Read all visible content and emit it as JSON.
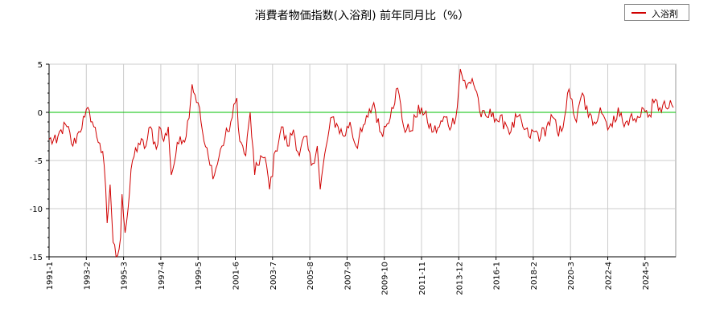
{
  "chart_data": {
    "type": "line",
    "title": "消費者物価指数(入浴剤) 前年同月比（%）",
    "xlabel": "",
    "ylabel": "",
    "ylim": [
      -15,
      5
    ],
    "yticks": [
      5,
      0,
      -5,
      -10,
      -15
    ],
    "xtick_labels": [
      "1991-1",
      "1993-2",
      "1995-3",
      "1997-4",
      "1999-5",
      "2001-6",
      "2003-7",
      "2005-8",
      "2007-9",
      "2009-10",
      "2011-11",
      "2013-12",
      "2016-1",
      "2018-2",
      "2020-3",
      "2022-4",
      "2024-5"
    ],
    "reference_line": {
      "y": 0,
      "color": "#00c000"
    },
    "grid": true,
    "legend_position": "top-right",
    "series": [
      {
        "name": "入浴剤",
        "color": "#d00000",
        "anchors": [
          [
            "1991-01",
            -2.8
          ],
          [
            "1991-06",
            -3.2
          ],
          [
            "1991-09",
            -1.8
          ],
          [
            "1992-01",
            -1.5
          ],
          [
            "1992-05",
            -3.5
          ],
          [
            "1992-09",
            -2.0
          ],
          [
            "1993-01",
            -0.5
          ],
          [
            "1993-04",
            0.2
          ],
          [
            "1993-07",
            -1.5
          ],
          [
            "1993-11",
            -3.2
          ],
          [
            "1994-02",
            -5.5
          ],
          [
            "1994-04",
            -11.5
          ],
          [
            "1994-06",
            -7.5
          ],
          [
            "1994-08",
            -13.5
          ],
          [
            "1994-10",
            -15.0
          ],
          [
            "1995-01",
            -13.0
          ],
          [
            "1995-02",
            -8.5
          ],
          [
            "1995-04",
            -12.5
          ],
          [
            "1995-06",
            -10.0
          ],
          [
            "1995-09",
            -5.0
          ],
          [
            "1996-01",
            -3.2
          ],
          [
            "1996-06",
            -3.5
          ],
          [
            "1996-09",
            -1.5
          ],
          [
            "1997-01",
            -3.8
          ],
          [
            "1997-03",
            -1.5
          ],
          [
            "1997-06",
            -3.0
          ],
          [
            "1997-09",
            -1.5
          ],
          [
            "1997-11",
            -6.5
          ],
          [
            "1998-02",
            -4.5
          ],
          [
            "1998-05",
            -2.5
          ],
          [
            "1998-09",
            -2.5
          ],
          [
            "1999-01",
            2.9
          ],
          [
            "1999-05",
            1.0
          ],
          [
            "1999-07",
            -1.0
          ],
          [
            "1999-09",
            -3.0
          ],
          [
            "2000-01",
            -5.5
          ],
          [
            "2000-04",
            -6.5
          ],
          [
            "2000-09",
            -3.5
          ],
          [
            "2001-01",
            -2.0
          ],
          [
            "2001-04",
            -0.5
          ],
          [
            "2001-07",
            1.5
          ],
          [
            "2001-09",
            -3.0
          ],
          [
            "2002-01",
            -4.5
          ],
          [
            "2002-04",
            0.0
          ],
          [
            "2002-07",
            -6.5
          ],
          [
            "2002-11",
            -4.5
          ],
          [
            "2003-03",
            -5.5
          ],
          [
            "2003-05",
            -8.0
          ],
          [
            "2003-09",
            -4.0
          ],
          [
            "2004-01",
            -1.5
          ],
          [
            "2004-05",
            -3.5
          ],
          [
            "2004-09",
            -1.8
          ],
          [
            "2005-01",
            -4.5
          ],
          [
            "2005-05",
            -2.5
          ],
          [
            "2005-09",
            -5.5
          ],
          [
            "2006-01",
            -3.5
          ],
          [
            "2006-03",
            -8.0
          ],
          [
            "2006-07",
            -3.5
          ],
          [
            "2006-11",
            -0.5
          ],
          [
            "2007-03",
            -1.5
          ],
          [
            "2007-07",
            -2.5
          ],
          [
            "2007-11",
            -1.0
          ],
          [
            "2008-03",
            -3.5
          ],
          [
            "2008-07",
            -2.0
          ],
          [
            "2008-11",
            -0.5
          ],
          [
            "2009-03",
            1.0
          ],
          [
            "2009-07",
            -2.0
          ],
          [
            "2009-11",
            -1.5
          ],
          [
            "2010-03",
            0.5
          ],
          [
            "2010-07",
            2.5
          ],
          [
            "2010-11",
            -1.5
          ],
          [
            "2011-03",
            -2.0
          ],
          [
            "2011-07",
            -0.5
          ],
          [
            "2011-11",
            0.5
          ],
          [
            "2012-03",
            -1.0
          ],
          [
            "2012-07",
            -2.0
          ],
          [
            "2012-11",
            -1.5
          ],
          [
            "2013-03",
            -0.5
          ],
          [
            "2013-07",
            -1.5
          ],
          [
            "2013-11",
            0.5
          ],
          [
            "2014-01",
            4.5
          ],
          [
            "2014-05",
            2.5
          ],
          [
            "2014-09",
            3.5
          ],
          [
            "2015-01",
            1.5
          ],
          [
            "2015-03",
            -0.5
          ],
          [
            "2015-07",
            -0.5
          ],
          [
            "2015-11",
            0.0
          ],
          [
            "2016-03",
            -1.0
          ],
          [
            "2016-07",
            -1.0
          ],
          [
            "2016-11",
            -2.0
          ],
          [
            "2017-03",
            -0.5
          ],
          [
            "2017-07",
            -1.5
          ],
          [
            "2017-11",
            -2.5
          ],
          [
            "2018-03",
            -2.0
          ],
          [
            "2018-07",
            -2.5
          ],
          [
            "2018-11",
            -1.5
          ],
          [
            "2019-03",
            -0.5
          ],
          [
            "2019-07",
            -2.5
          ],
          [
            "2019-11",
            -0.5
          ],
          [
            "2020-01",
            2.0
          ],
          [
            "2020-03",
            1.5
          ],
          [
            "2020-07",
            -1.0
          ],
          [
            "2020-11",
            2.0
          ],
          [
            "2021-03",
            -0.5
          ],
          [
            "2021-07",
            -1.0
          ],
          [
            "2021-11",
            0.5
          ],
          [
            "2022-03",
            -1.0
          ],
          [
            "2022-07",
            -1.5
          ],
          [
            "2022-11",
            0.5
          ],
          [
            "2023-03",
            -1.5
          ],
          [
            "2023-07",
            -0.5
          ],
          [
            "2023-11",
            -1.0
          ],
          [
            "2024-03",
            0.5
          ],
          [
            "2024-07",
            -0.5
          ],
          [
            "2024-11",
            1.0
          ],
          [
            "2025-03",
            0.5
          ],
          [
            "2025-07",
            0.5
          ],
          [
            "2025-12",
            0.5
          ]
        ]
      }
    ]
  }
}
